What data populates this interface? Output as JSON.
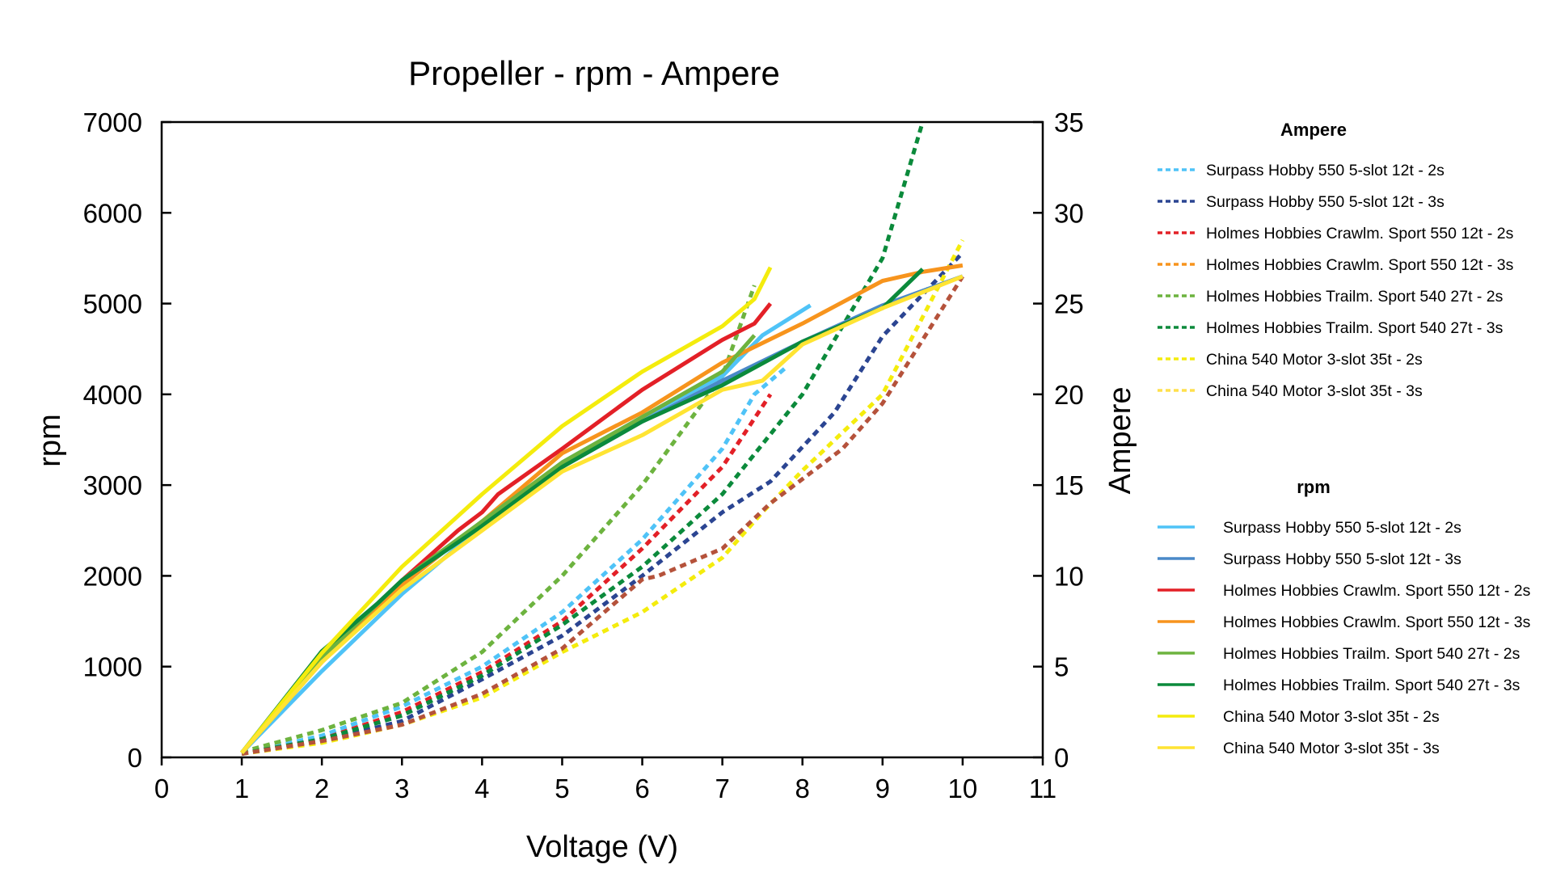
{
  "chart_data": {
    "type": "line",
    "title": "Propeller - rpm - Ampere",
    "xlabel": "Voltage (V)",
    "ylabel": "rpm",
    "y2label": "Ampere",
    "xlim": [
      0,
      11
    ],
    "ylim": [
      0,
      7000
    ],
    "y2lim": [
      0,
      35
    ],
    "x_ticks": [
      0,
      1,
      2,
      3,
      4,
      5,
      6,
      7,
      8,
      9,
      10,
      11
    ],
    "y_ticks": [
      0,
      1000,
      2000,
      3000,
      4000,
      5000,
      6000,
      7000
    ],
    "y2_ticks": [
      0,
      5,
      10,
      15,
      20,
      25,
      30,
      35
    ],
    "grid": false,
    "legend_groups": [
      {
        "heading": "Ampere",
        "axis": "right",
        "dash": true,
        "series": [
          {
            "name": "Surpass Hobby 550 5-slot 12t - 2s",
            "color": "#4fc3f7",
            "x": [
              1,
              2,
              3,
              4,
              5,
              6,
              7,
              7.4,
              7.8
            ],
            "y": [
              0.2,
              1.2,
              2.8,
              5,
              8,
              12,
              17,
              20,
              21.5
            ]
          },
          {
            "name": "Surpass Hobby 550 5-slot 12t - 3s",
            "color": "#2b4592",
            "x": [
              1,
              2,
              3,
              4,
              5,
              6,
              7,
              7.6,
              8.4,
              9,
              10
            ],
            "y": [
              0.2,
              0.9,
              2,
              4.3,
              6.7,
              10,
              13.5,
              15.2,
              19,
              23.2,
              27.8
            ]
          },
          {
            "name": "Holmes Hobbies Crawlm. Sport 550 12t - 2s",
            "color": "#e32027",
            "x": [
              1,
              2,
              3,
              4,
              5,
              6,
              7,
              7.6
            ],
            "y": [
              0.2,
              1,
              2.5,
              4.7,
              7.5,
              11.5,
              16,
              20
            ]
          },
          {
            "name": "Holmes Hobbies Crawlm. Sport 550 12t - 3s",
            "color": "#f7941d",
            "x": [],
            "y": []
          },
          {
            "name": "Holmes Hobbies Trailm. Sport 540 27t - 2s",
            "color": "#6db33f",
            "x": [
              1,
              2,
              3,
              4,
              5,
              6,
              7,
              7.4
            ],
            "y": [
              0.3,
              1.5,
              3,
              5.8,
              10,
              15,
              21,
              26
            ]
          },
          {
            "name": "Holmes Hobbies Trailm. Sport 540 27t - 3s",
            "color": "#0b8a3b",
            "x": [
              1,
              2,
              3,
              4,
              5,
              6,
              7,
              8,
              9,
              9.5
            ],
            "y": [
              0.2,
              1,
              2.3,
              4.5,
              7.3,
              10.5,
              14.5,
              20,
              27.5,
              35
            ]
          },
          {
            "name": "China 540 Motor 3-slot 35t - 2s",
            "color": "#f4ec0d",
            "x": [
              1,
              2,
              3,
              4,
              5,
              6,
              7,
              7.5,
              8,
              9,
              10
            ],
            "y": [
              0.2,
              0.8,
              1.8,
              3.3,
              5.8,
              8,
              11,
              13.5,
              15.8,
              20,
              28.5
            ]
          },
          {
            "name": "China 540 Motor 3-slot 35t - 3s",
            "color": "#ffe04d",
            "x": [],
            "y": []
          },
          {
            "name": "",
            "color": "#b5523b",
            "x": [
              1,
              2,
              3,
              4,
              5,
              6,
              6.2,
              7,
              7.6,
              8.5,
              9,
              10
            ],
            "y": [
              0.2,
              0.9,
              1.8,
              3.5,
              6,
              9.8,
              10,
              11.5,
              14,
              17,
              19.5,
              26.5
            ]
          }
        ]
      },
      {
        "heading": "rpm",
        "axis": "left",
        "dash": false,
        "series": [
          {
            "name": "Surpass Hobby 550 5-slot 12t - 2s",
            "color": "#4fc3f7",
            "x": [
              1,
              2,
              3,
              4,
              5,
              6,
              7,
              7.5,
              8.1
            ],
            "y": [
              50,
              950,
              1800,
              2550,
              3250,
              3750,
              4200,
              4650,
              4980
            ]
          },
          {
            "name": "Surpass Hobby 550 5-slot 12t - 3s",
            "color": "#4a89c8",
            "x": [
              1,
              2,
              3,
              4,
              5,
              6,
              7,
              8,
              9,
              10
            ],
            "y": [
              50,
              1050,
              1900,
              2600,
              3200,
              3700,
              4150,
              4580,
              4980,
              5300
            ]
          },
          {
            "name": "Holmes Hobbies Crawlm. Sport 550 12t - 2s",
            "color": "#e32027",
            "x": [
              1,
              2,
              3,
              3.7,
              4,
              4.2,
              5,
              6,
              7,
              7.4,
              7.6
            ],
            "y": [
              50,
              1100,
              1950,
              2500,
              2700,
              2900,
              3400,
              4050,
              4600,
              4780,
              5000
            ]
          },
          {
            "name": "Holmes Hobbies Crawlm. Sport 550 12t - 3s",
            "color": "#f7941d",
            "x": [
              1,
              2,
              3,
              4,
              5,
              6,
              7,
              8,
              9,
              9.5,
              10
            ],
            "y": [
              50,
              1050,
              1900,
              2600,
              3350,
              3800,
              4350,
              4780,
              5250,
              5350,
              5420
            ]
          },
          {
            "name": "Holmes Hobbies Trailm. Sport 540 27t - 2s",
            "color": "#6db33f",
            "x": [
              1,
              2,
              3,
              4,
              5,
              6,
              7,
              7.4
            ],
            "y": [
              50,
              1100,
              1950,
              2600,
              3250,
              3750,
              4250,
              4650
            ]
          },
          {
            "name": "Holmes Hobbies Trailm. Sport 540 27t - 3s",
            "color": "#0b8a3b",
            "x": [
              1,
              2,
              2.7,
              3,
              4,
              5,
              6,
              7,
              8,
              9,
              9.5
            ],
            "y": [
              50,
              1170,
              1700,
              1950,
              2550,
              3200,
              3700,
              4100,
              4580,
              4950,
              5380
            ]
          },
          {
            "name": "China 540 Motor 3-slot 35t - 2s",
            "color": "#f4ec0d",
            "x": [
              1,
              2,
              3,
              4,
              5,
              6,
              7,
              7.4,
              7.6
            ],
            "y": [
              50,
              1150,
              2100,
              2900,
              3650,
              4250,
              4750,
              5050,
              5400
            ]
          },
          {
            "name": "China 540 Motor 3-slot 35t - 3s",
            "color": "#ffe433",
            "x": [
              1,
              2,
              3,
              4,
              5,
              6,
              7,
              7.5,
              8,
              9,
              10
            ],
            "y": [
              50,
              1050,
              1850,
              2500,
              3150,
              3550,
              4050,
              4150,
              4550,
              4950,
              5300
            ]
          }
        ]
      }
    ]
  }
}
